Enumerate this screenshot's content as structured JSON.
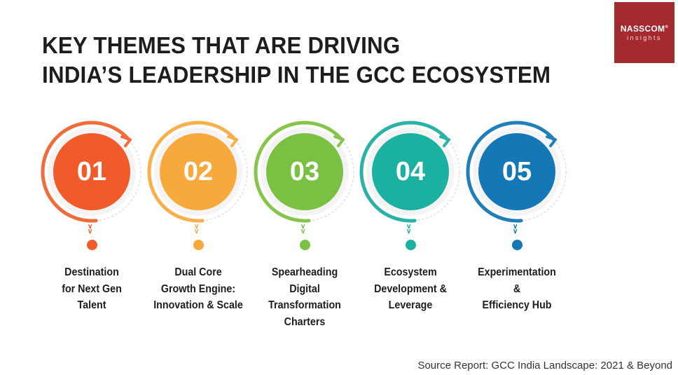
{
  "title": {
    "line1": "KEY THEMES THAT ARE DRIVING",
    "line2": "INDIA’S LEADERSHIP IN THE GCC ECOSYSTEM"
  },
  "logo": {
    "brand": "NASSCOM",
    "reg": "®",
    "sub": "insights"
  },
  "themes": [
    {
      "number": "01",
      "label": "Destination\nfor Next Gen\nTalent",
      "color": "#f15a29",
      "ring": "#f26b3a"
    },
    {
      "number": "02",
      "label": "Dual Core\nGrowth Engine:\nInnovation & Scale",
      "color": "#f7a93c",
      "ring": "#f8b04a"
    },
    {
      "number": "03",
      "label": "Spearheading\nDigital\nTransformation\nCharters",
      "color": "#7ac143",
      "ring": "#86c54a"
    },
    {
      "number": "04",
      "label": "Ecosystem\nDevelopment &\nLeverage",
      "color": "#1ab1a1",
      "ring": "#28b3a6"
    },
    {
      "number": "05",
      "label": "Experimentation\n&\nEfficiency Hub",
      "color": "#1378b5",
      "ring": "#1f7fb8"
    }
  ],
  "source": "Source Report: GCC India Landscape: 2021 & Beyond"
}
